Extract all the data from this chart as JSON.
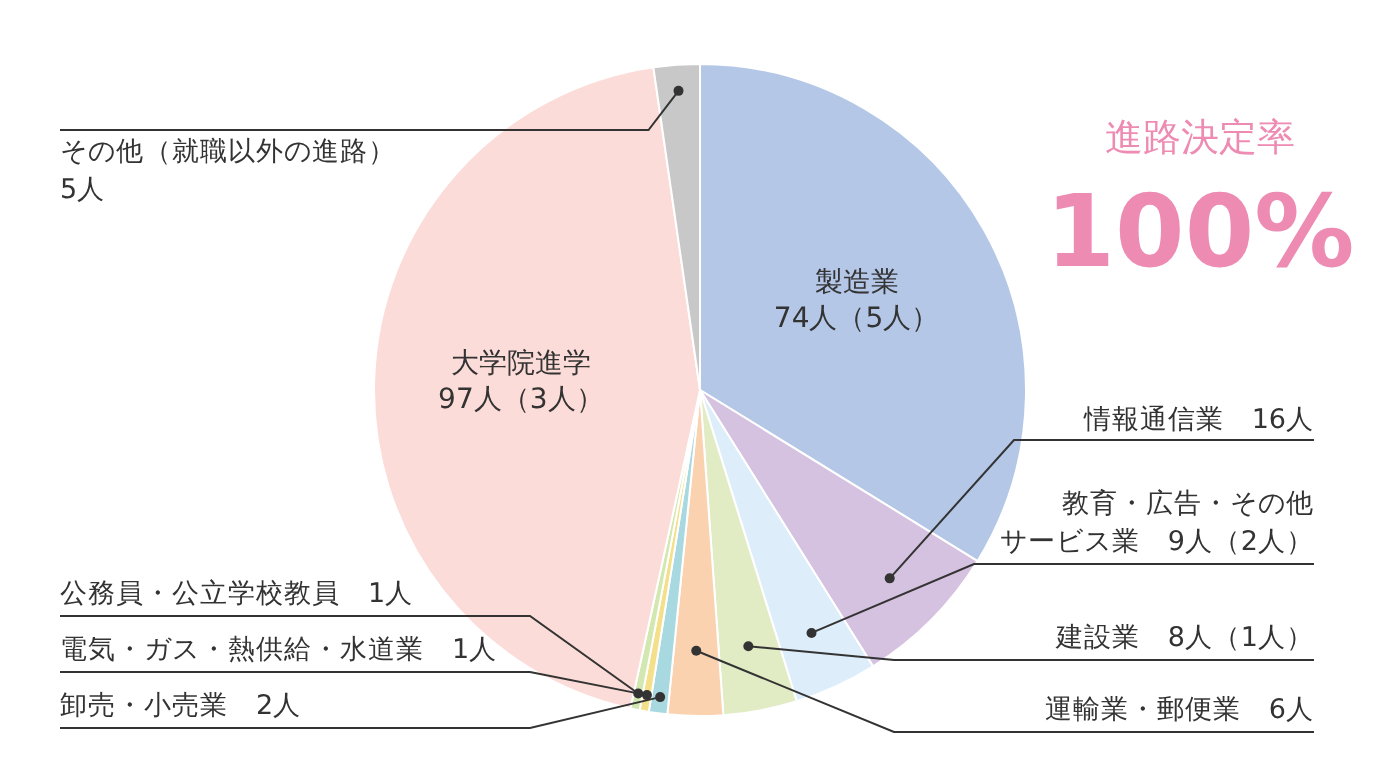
{
  "chart_data": {
    "type": "pie",
    "title": "進路決定率",
    "subtitle": "100%",
    "categories": [
      "製造業",
      "情報通信業",
      "教育・広告・その他サービス業",
      "建設業",
      "運輸業・郵便業",
      "卸売・小売業",
      "電気・ガス・熱供給・水道業",
      "公務員・公立学校教員",
      "大学院進学",
      "その他（就職以外の進路）"
    ],
    "values": [
      74,
      16,
      9,
      8,
      6,
      2,
      1,
      1,
      97,
      5
    ],
    "value_labels": [
      "74人（5人）",
      "16人",
      "9人（2人）",
      "8人（1人）",
      "6人",
      "2人",
      "1人",
      "1人",
      "97人（3人）",
      "5人"
    ],
    "colors": [
      "#b4c7e7",
      "#d5c1e0",
      "#ddeefa",
      "#e1ebc4",
      "#fbd2b0",
      "#a8d8e0",
      "#f4e08a",
      "#d3e8b0",
      "#fcdcd8",
      "#c8c8c8"
    ]
  }
}
